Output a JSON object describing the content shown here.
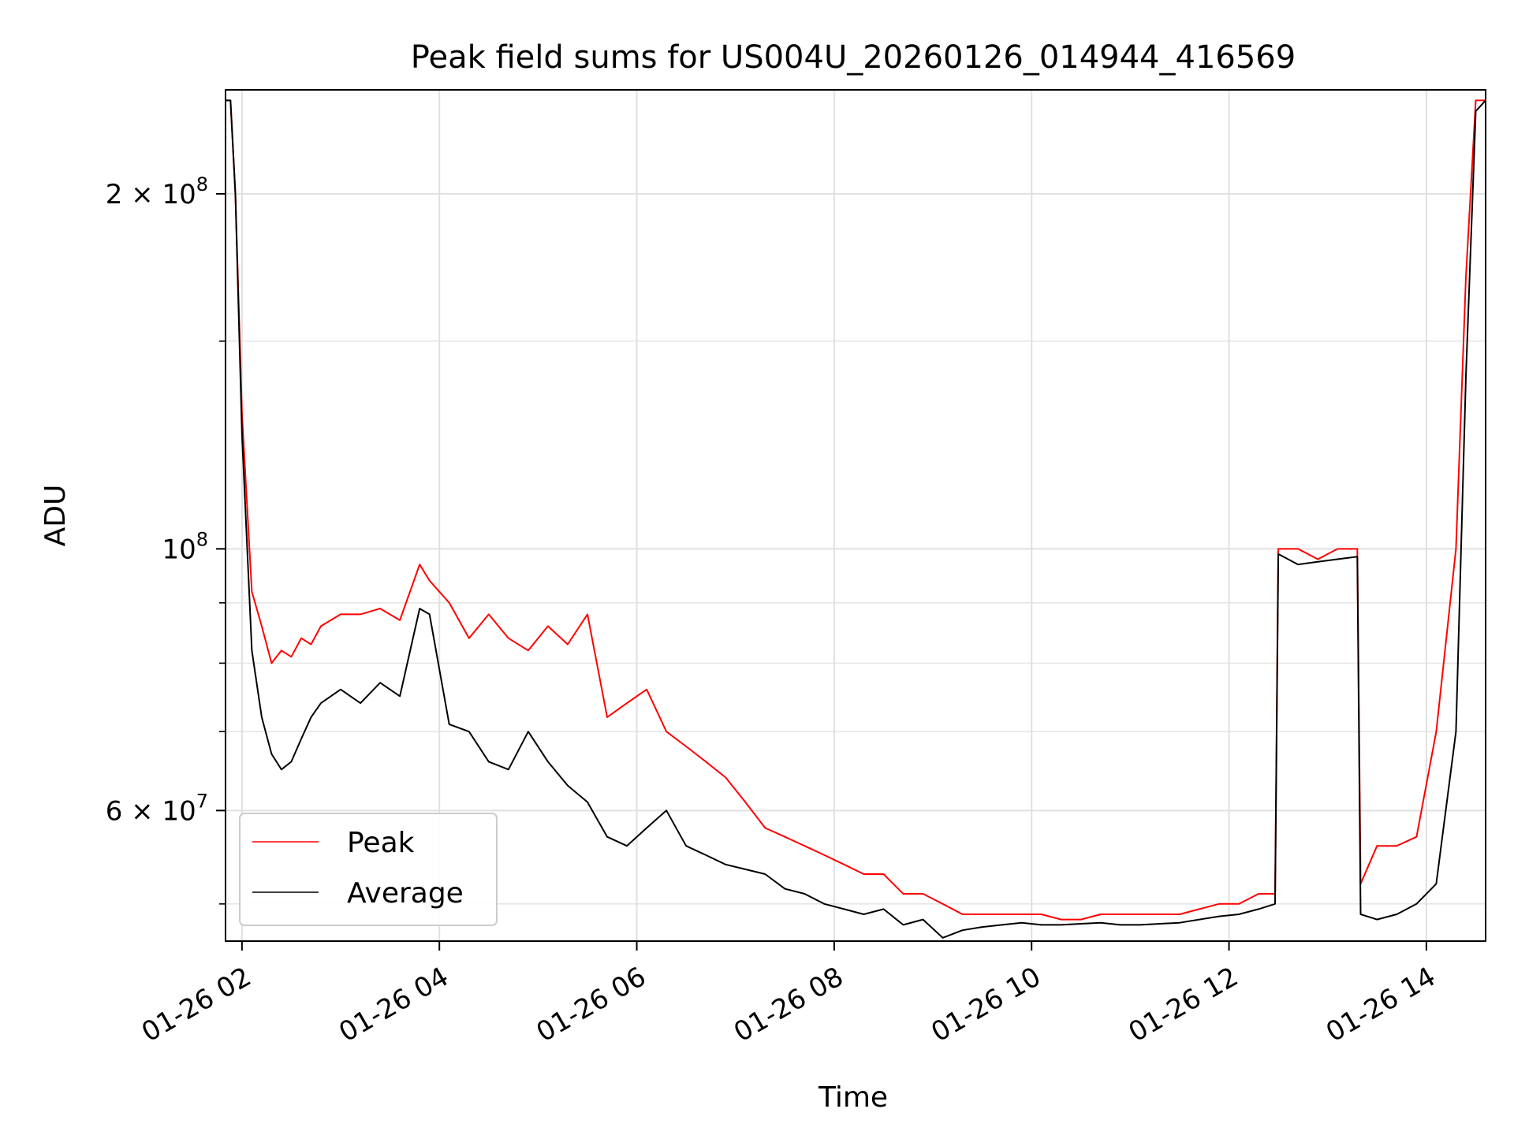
{
  "chart_data": {
    "type": "line",
    "title": "Peak field sums for US004U_20260126_014944_416569",
    "xlabel": "Time",
    "ylabel": "ADU",
    "yscale": "log",
    "grid": true,
    "legend_position": "lower-left",
    "xlim": [
      "01-26 01:50",
      "01-26 14:36"
    ],
    "ylim": [
      46500000,
      245000000
    ],
    "x_ticks": [
      "01-26 02",
      "01-26 04",
      "01-26 06",
      "01-26 08",
      "01-26 10",
      "01-26 12",
      "01-26 14"
    ],
    "y_ticks": [
      {
        "value": 200000000,
        "base": "2 × 10",
        "exp": "8"
      },
      {
        "value": 100000000,
        "base": "10",
        "exp": "8"
      },
      {
        "value": 60000000,
        "base": "6 × 10",
        "exp": "7"
      }
    ],
    "series": [
      {
        "name": "Peak",
        "color": "#ff0000",
        "x": [
          "01-26 01:50",
          "01-26 01:53",
          "01-26 01:56",
          "01-26 02:00",
          "01-26 02:06",
          "01-26 02:12",
          "01-26 02:18",
          "01-26 02:24",
          "01-26 02:30",
          "01-26 02:36",
          "01-26 02:42",
          "01-26 02:48",
          "01-26 03:00",
          "01-26 03:12",
          "01-26 03:24",
          "01-26 03:36",
          "01-26 03:48",
          "01-26 03:54",
          "01-26 04:06",
          "01-26 04:18",
          "01-26 04:30",
          "01-26 04:42",
          "01-26 04:54",
          "01-26 05:06",
          "01-26 05:18",
          "01-26 05:30",
          "01-26 05:42",
          "01-26 05:54",
          "01-26 06:06",
          "01-26 06:18",
          "01-26 06:30",
          "01-26 06:42",
          "01-26 06:54",
          "01-26 07:06",
          "01-26 07:18",
          "01-26 07:30",
          "01-26 07:42",
          "01-26 07:54",
          "01-26 08:06",
          "01-26 08:18",
          "01-26 08:30",
          "01-26 08:42",
          "01-26 08:54",
          "01-26 09:06",
          "01-26 09:18",
          "01-26 09:30",
          "01-26 09:42",
          "01-26 09:54",
          "01-26 10:06",
          "01-26 10:18",
          "01-26 10:30",
          "01-26 10:42",
          "01-26 10:54",
          "01-26 11:06",
          "01-26 11:18",
          "01-26 11:30",
          "01-26 11:42",
          "01-26 11:54",
          "01-26 12:06",
          "01-26 12:18",
          "01-26 12:28",
          "01-26 12:30",
          "01-26 12:42",
          "01-26 12:54",
          "01-26 13:06",
          "01-26 13:18",
          "01-26 13:20",
          "01-26 13:30",
          "01-26 13:42",
          "01-26 13:54",
          "01-26 14:06",
          "01-26 14:18",
          "01-26 14:24",
          "01-26 14:30",
          "01-26 14:36"
        ],
        "values": [
          240000000,
          240000000,
          200000000,
          130000000,
          92000000,
          86000000,
          80000000,
          82000000,
          81000000,
          84000000,
          83000000,
          86000000,
          88000000,
          88000000,
          89000000,
          87000000,
          97000000,
          94000000,
          90000000,
          84000000,
          88000000,
          84000000,
          82000000,
          86000000,
          83000000,
          88000000,
          72000000,
          74000000,
          76000000,
          70000000,
          68000000,
          66000000,
          64000000,
          61000000,
          58000000,
          57000000,
          56000000,
          55000000,
          54000000,
          53000000,
          53000000,
          51000000,
          51000000,
          50000000,
          49000000,
          49000000,
          49000000,
          49000000,
          49000000,
          48500000,
          48500000,
          49000000,
          49000000,
          49000000,
          49000000,
          49000000,
          49500000,
          50000000,
          50000000,
          51000000,
          51000000,
          100000000,
          100000000,
          98000000,
          100000000,
          100000000,
          52000000,
          56000000,
          56000000,
          57000000,
          70000000,
          100000000,
          170000000,
          240000000,
          240000000
        ]
      },
      {
        "name": "Average",
        "color": "#000000",
        "x": [
          "01-26 01:50",
          "01-26 01:53",
          "01-26 01:56",
          "01-26 02:00",
          "01-26 02:06",
          "01-26 02:12",
          "01-26 02:18",
          "01-26 02:24",
          "01-26 02:30",
          "01-26 02:36",
          "01-26 02:42",
          "01-26 02:48",
          "01-26 03:00",
          "01-26 03:12",
          "01-26 03:24",
          "01-26 03:36",
          "01-26 03:48",
          "01-26 03:54",
          "01-26 04:06",
          "01-26 04:18",
          "01-26 04:30",
          "01-26 04:42",
          "01-26 04:54",
          "01-26 05:06",
          "01-26 05:18",
          "01-26 05:30",
          "01-26 05:42",
          "01-26 05:54",
          "01-26 06:06",
          "01-26 06:18",
          "01-26 06:30",
          "01-26 06:42",
          "01-26 06:54",
          "01-26 07:06",
          "01-26 07:18",
          "01-26 07:30",
          "01-26 07:42",
          "01-26 07:54",
          "01-26 08:06",
          "01-26 08:18",
          "01-26 08:30",
          "01-26 08:42",
          "01-26 08:54",
          "01-26 09:06",
          "01-26 09:18",
          "01-26 09:30",
          "01-26 09:42",
          "01-26 09:54",
          "01-26 10:06",
          "01-26 10:18",
          "01-26 10:30",
          "01-26 10:42",
          "01-26 10:54",
          "01-26 11:06",
          "01-26 11:18",
          "01-26 11:30",
          "01-26 11:42",
          "01-26 11:54",
          "01-26 12:06",
          "01-26 12:18",
          "01-26 12:28",
          "01-26 12:30",
          "01-26 12:42",
          "01-26 12:54",
          "01-26 13:06",
          "01-26 13:18",
          "01-26 13:20",
          "01-26 13:30",
          "01-26 13:42",
          "01-26 13:54",
          "01-26 14:06",
          "01-26 14:18",
          "01-26 14:24",
          "01-26 14:30",
          "01-26 14:36"
        ],
        "values": [
          240000000,
          240000000,
          200000000,
          125000000,
          82000000,
          72000000,
          67000000,
          65000000,
          66000000,
          69000000,
          72000000,
          74000000,
          76000000,
          74000000,
          77000000,
          75000000,
          89000000,
          88000000,
          71000000,
          70000000,
          66000000,
          65000000,
          70000000,
          66000000,
          63000000,
          61000000,
          57000000,
          56000000,
          58000000,
          60000000,
          56000000,
          55000000,
          54000000,
          53500000,
          53000000,
          51500000,
          51000000,
          50000000,
          49500000,
          49000000,
          49500000,
          48000000,
          48500000,
          46800000,
          47500000,
          47800000,
          48000000,
          48200000,
          48000000,
          48000000,
          48100000,
          48200000,
          48000000,
          48000000,
          48100000,
          48200000,
          48500000,
          48800000,
          49000000,
          49500000,
          50000000,
          99000000,
          97000000,
          97500000,
          98000000,
          98500000,
          49000000,
          48500000,
          49000000,
          50000000,
          52000000,
          70000000,
          140000000,
          235000000,
          240000000
        ]
      }
    ]
  }
}
